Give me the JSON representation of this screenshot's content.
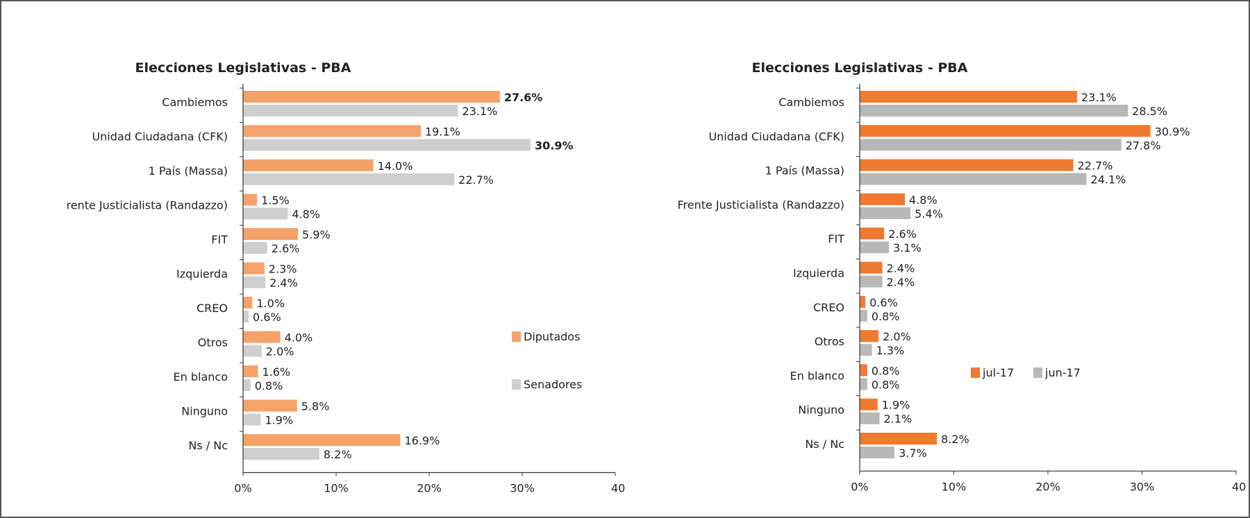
{
  "chart_data": [
    {
      "type": "bar",
      "orientation": "horizontal",
      "title": "Elecciones Legislativas - PBA",
      "categories": [
        "Cambiemos",
        "Unidad Ciudadana (CFK)",
        "1 País (Massa)",
        "rente Justicialista (Randazzo)",
        "FIT",
        "Izquierda",
        "CREO",
        "Otros",
        "En blanco",
        "Ninguno",
        "Ns / Nc"
      ],
      "series": [
        {
          "name": "Diputados",
          "color": "#f4a26a",
          "values": [
            27.6,
            19.1,
            14.0,
            1.5,
            5.9,
            2.3,
            1.0,
            4.0,
            1.6,
            5.8,
            16.9
          ],
          "labels": [
            "27.6%",
            "19.1%",
            "14.0%",
            "1.5%",
            "5.9%",
            "2.3%",
            "1.0%",
            "4.0%",
            "1.6%",
            "5.8%",
            "16.9%"
          ]
        },
        {
          "name": "Senadores",
          "color": "#cfcfcf",
          "values": [
            23.1,
            30.9,
            22.7,
            4.8,
            2.6,
            2.4,
            0.6,
            2.0,
            0.8,
            1.9,
            8.2
          ],
          "labels": [
            "23.1%",
            "30.9%",
            "22.7%",
            "4.8%",
            "2.6%",
            "2.4%",
            "0.6%",
            "2.0%",
            "0.8%",
            "1.9%",
            "8.2%"
          ]
        }
      ],
      "bold_labels": [
        "27.6%",
        "30.9%"
      ],
      "xlim": [
        0,
        40
      ],
      "xticks": [
        "0%",
        "10%",
        "20%",
        "30%",
        "40%"
      ],
      "legend_position": "right"
    },
    {
      "type": "bar",
      "orientation": "horizontal",
      "title": "Elecciones Legislativas - PBA",
      "categories": [
        "Cambiemos",
        "Unidad Ciudadana (CFK)",
        "1 País (Massa)",
        "Frente Justicialista (Randazzo)",
        "FIT",
        "Izquierda",
        "CREO",
        "Otros",
        "En blanco",
        "Ninguno",
        "Ns / Nc"
      ],
      "series": [
        {
          "name": "jul-17",
          "color": "#f07a30",
          "values": [
            23.1,
            30.9,
            22.7,
            4.8,
            2.6,
            2.4,
            0.6,
            2.0,
            0.8,
            1.9,
            8.2
          ],
          "labels": [
            "23.1%",
            "30.9%",
            "22.7%",
            "4.8%",
            "2.6%",
            "2.4%",
            "0.6%",
            "2.0%",
            "0.8%",
            "1.9%",
            "8.2%"
          ]
        },
        {
          "name": "jun-17",
          "color": "#b8b8b8",
          "values": [
            28.5,
            27.8,
            24.1,
            5.4,
            3.1,
            2.4,
            0.8,
            1.3,
            0.8,
            2.1,
            3.7
          ],
          "labels": [
            "28.5%",
            "27.8%",
            "24.1%",
            "5.4%",
            "3.1%",
            "2.4%",
            "0.8%",
            "1.3%",
            "0.8%",
            "2.1%",
            "3.7%"
          ]
        }
      ],
      "bold_labels": [],
      "xlim": [
        0,
        40
      ],
      "xticks": [
        "0%",
        "10%",
        "20%",
        "30%",
        "40"
      ],
      "legend_position": "bottom-right"
    }
  ]
}
